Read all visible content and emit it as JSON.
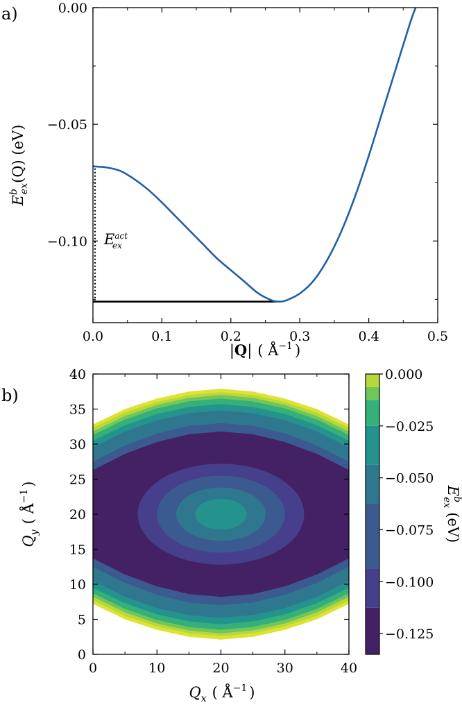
{
  "chart_data": [
    {
      "type": "line",
      "panel_label": "a)",
      "xlim": [
        0.0,
        0.5
      ],
      "ylim": [
        -0.135,
        0.0
      ],
      "x_ticks": [
        0.0,
        0.1,
        0.2,
        0.3,
        0.4,
        0.5
      ],
      "x_tick_labels": [
        "0.0",
        "0.1",
        "0.2",
        "0.3",
        "0.4",
        "0.5"
      ],
      "y_ticks": [
        0.0,
        -0.05,
        -0.1
      ],
      "y_tick_labels": [
        "0.00",
        "−0.05",
        "−0.10"
      ],
      "xlabel": {
        "bar_left": "|",
        "var": "Q",
        "bar_right": "|",
        "unit": "( Å",
        "exp": "−1",
        "close": ")"
      },
      "ylabel": {
        "base": "E",
        "sup": "b",
        "sub": "ex",
        "arg": "(Q) (eV)"
      },
      "annotation": {
        "base": "E",
        "sup": "act",
        "sub": "ex"
      },
      "series": [
        {
          "name": "E_ex^b(Q)",
          "color": "#1f5fa6",
          "x": [
            0.0,
            0.02,
            0.04,
            0.06,
            0.08,
            0.1,
            0.12,
            0.14,
            0.16,
            0.18,
            0.2,
            0.22,
            0.24,
            0.26,
            0.27,
            0.28,
            0.3,
            0.32,
            0.34,
            0.36,
            0.38,
            0.4,
            0.42,
            0.44,
            0.46,
            0.468
          ],
          "y": [
            -0.068,
            -0.0685,
            -0.07,
            -0.0735,
            -0.078,
            -0.0835,
            -0.0895,
            -0.0955,
            -0.1015,
            -0.1075,
            -0.1125,
            -0.1175,
            -0.1225,
            -0.1255,
            -0.126,
            -0.1255,
            -0.1225,
            -0.117,
            -0.108,
            -0.096,
            -0.081,
            -0.0635,
            -0.0445,
            -0.0255,
            -0.0065,
            0.0
          ]
        }
      ],
      "minimum_line": {
        "x": [
          0.0,
          0.27
        ],
        "y": -0.126,
        "color": "#000000"
      },
      "activation_line": {
        "x": 0.003,
        "y": [
          -0.126,
          -0.068
        ],
        "style": "dotted"
      }
    },
    {
      "type": "heatmap",
      "panel_label": "b)",
      "xlim": [
        0,
        40
      ],
      "ylim": [
        0,
        40
      ],
      "x_ticks": [
        0,
        10,
        20,
        30,
        40
      ],
      "x_tick_labels": [
        "0",
        "10",
        "20",
        "30",
        "40"
      ],
      "y_ticks": [
        0,
        5,
        10,
        15,
        20,
        25,
        30,
        35,
        40
      ],
      "y_tick_labels": [
        "0",
        "5",
        "10",
        "15",
        "20",
        "25",
        "30",
        "35",
        "40"
      ],
      "xlabel": {
        "base": "Q",
        "sub": "x",
        "unit": "( Å",
        "exp": "−1",
        "close": ")"
      },
      "ylabel": {
        "base": "Q",
        "sub": "y",
        "unit": "( Å",
        "exp": "−1",
        "close": ")"
      },
      "colorbar": {
        "label": {
          "base": "E",
          "sup": "b",
          "sub": "ex",
          "unit": "(eV)"
        },
        "range": [
          -0.135,
          0.0
        ],
        "ticks": [
          0.0,
          -0.025,
          -0.05,
          -0.075,
          -0.1,
          -0.125
        ],
        "tick_labels": [
          "0.000",
          "−0.025",
          "−0.050",
          "−0.075",
          "−0.100",
          "−0.125"
        ],
        "levels": [
          -0.135,
          -0.1125,
          -0.09375,
          -0.0625,
          -0.04375,
          -0.025,
          -0.0125,
          -0.00625,
          0.0
        ],
        "colors": [
          "#432164",
          "#463f8c",
          "#3b5a8f",
          "#2f778f",
          "#24938d",
          "#35b07b",
          "#70c65b",
          "#b7d83b",
          "#dfe233"
        ]
      },
      "contours": [
        {
          "level_index": 1,
          "polygon_qx": [
            0,
            5,
            10,
            15,
            20,
            25,
            30,
            35,
            40,
            40,
            35,
            30,
            25,
            20,
            15,
            10,
            5,
            0
          ],
          "polygon_qy": [
            32.3,
            34.5,
            36,
            37,
            37.4,
            37,
            36,
            34.5,
            32.3,
            7.7,
            5.5,
            4,
            3,
            2.6,
            3,
            4,
            5.5,
            7.7
          ]
        },
        {
          "level_index": 2,
          "polygon_qx": [
            0,
            5,
            10,
            15,
            20,
            25,
            30,
            35,
            40,
            40,
            35,
            30,
            25,
            20,
            15,
            10,
            5,
            0
          ],
          "polygon_qy": [
            31.8,
            34,
            35.6,
            36.6,
            37,
            36.6,
            35.6,
            34,
            31.8,
            8.2,
            6,
            4.4,
            3.4,
            3,
            3.4,
            4.4,
            6,
            8.2
          ]
        },
        {
          "level_index": 3,
          "polygon_qx": [
            0,
            5,
            10,
            15,
            20,
            25,
            30,
            35,
            40,
            40,
            35,
            30,
            25,
            20,
            15,
            10,
            5,
            0
          ],
          "polygon_qy": [
            31.3,
            33.5,
            35.1,
            36.1,
            36.5,
            36.1,
            35.1,
            33.5,
            31.3,
            8.7,
            6.5,
            4.9,
            3.9,
            3.5,
            3.9,
            4.9,
            6.5,
            8.7
          ]
        },
        {
          "level_index": 4,
          "polygon_qx": [
            0,
            5,
            10,
            15,
            20,
            25,
            30,
            35,
            40,
            40,
            35,
            30,
            25,
            20,
            15,
            10,
            5,
            0
          ],
          "polygon_qy": [
            30.5,
            32.7,
            34.3,
            35.3,
            35.7,
            35.3,
            34.3,
            32.7,
            30.5,
            9.5,
            7.3,
            5.7,
            4.7,
            4.3,
            4.7,
            5.7,
            7.3,
            9.5
          ]
        },
        {
          "level_index": 5,
          "polygon_qx": [
            0,
            5,
            10,
            15,
            20,
            25,
            30,
            35,
            40,
            40,
            35,
            30,
            25,
            20,
            15,
            10,
            5,
            0
          ],
          "polygon_qy": [
            29.5,
            31.8,
            33.4,
            34.4,
            34.8,
            34.4,
            33.4,
            31.8,
            29.5,
            10.5,
            8.2,
            6.6,
            5.6,
            5.2,
            5.6,
            6.6,
            8.2,
            10.5
          ]
        },
        {
          "level_index": 6,
          "polygon_qx": [
            0,
            5,
            10,
            15,
            20,
            25,
            30,
            35,
            40,
            40,
            35,
            30,
            25,
            20,
            15,
            10,
            5,
            0
          ],
          "polygon_qy": [
            27.5,
            29.8,
            31.5,
            32.6,
            33,
            32.6,
            31.5,
            29.8,
            27.5,
            12.5,
            10.2,
            8.5,
            7.4,
            7,
            7.4,
            8.5,
            10.2,
            12.5
          ]
        }
      ],
      "rings": [
        {
          "level_index": 7,
          "center": [
            20,
            20
          ],
          "rx": 13,
          "ry": 7.2
        },
        {
          "level_index": 6,
          "center": [
            20,
            20
          ],
          "rx": 10,
          "ry": 5.5
        },
        {
          "level_index": 5,
          "center": [
            20,
            20
          ],
          "rx": 7,
          "ry": 3.8
        },
        {
          "level_index": 4,
          "center": [
            20,
            20
          ],
          "rx": 4,
          "ry": 2.2
        }
      ]
    }
  ]
}
